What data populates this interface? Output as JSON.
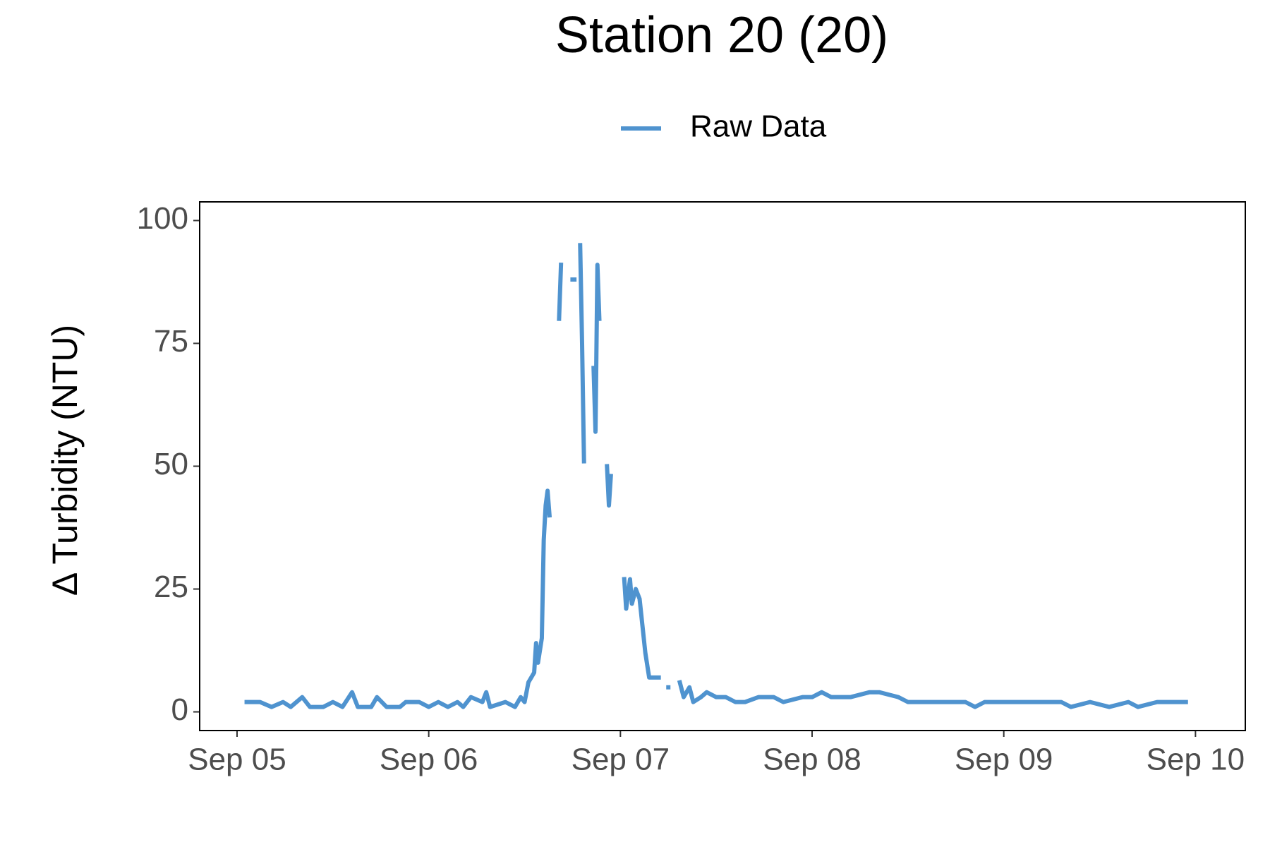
{
  "chart_data": {
    "type": "line",
    "title": "Station 20 (20)",
    "y_label": "Δ Turbidity (NTU)",
    "x": [
      5.05,
      5.12,
      5.18,
      5.24,
      5.28,
      5.34,
      5.38,
      5.45,
      5.5,
      5.55,
      5.6,
      5.63,
      5.7,
      5.73,
      5.78,
      5.85,
      5.88,
      5.95,
      6,
      6.05,
      6.1,
      6.15,
      6.18,
      6.22,
      6.28,
      6.3,
      6.32,
      6.4,
      6.45,
      6.48,
      6.5,
      6.52,
      6.55,
      6.56,
      6.57,
      6.59,
      6.6,
      6.61,
      6.62,
      6.63,
      6.65,
      6.68,
      6.69,
      6.7,
      6.75,
      6.76,
      6.77,
      6.79,
      6.8,
      6.81,
      6.83,
      6.86,
      6.87,
      6.88,
      6.89,
      6.91,
      6.93,
      6.94,
      6.95,
      6.98,
      7.02,
      7.03,
      7.05,
      7.06,
      7.08,
      7.1,
      7.13,
      7.15,
      7.2,
      7.22,
      7.25,
      7.28,
      7.31,
      7.33,
      7.36,
      7.38,
      7.42,
      7.45,
      7.5,
      7.55,
      7.6,
      7.65,
      7.72,
      7.8,
      7.85,
      7.95,
      8,
      8.05,
      8.1,
      8.15,
      8.2,
      8.3,
      8.35,
      8.45,
      8.5,
      8.6,
      8.7,
      8.8,
      8.85,
      8.9,
      9,
      9.1,
      9.2,
      9.3,
      9.35,
      9.45,
      9.55,
      9.65,
      9.7,
      9.8,
      9.9,
      9.95
    ],
    "series": [
      {
        "name": "Raw Data",
        "color": "#4f93cf",
        "values": [
          2,
          2,
          1,
          2,
          1,
          3,
          1,
          1,
          2,
          1,
          4,
          1,
          1,
          3,
          1,
          1,
          2,
          2,
          1,
          2,
          1,
          2,
          1,
          3,
          2,
          4,
          1,
          2,
          1,
          3,
          2,
          6,
          8,
          14,
          10,
          15,
          35,
          42,
          45,
          40,
          null,
          80,
          91,
          null,
          88,
          88,
          null,
          95,
          75,
          51,
          null,
          70,
          57,
          91,
          80,
          null,
          50,
          42,
          48,
          null,
          27,
          21,
          27,
          22,
          25,
          23,
          12,
          7,
          7,
          null,
          5,
          null,
          6,
          3,
          5,
          2,
          3,
          4,
          3,
          3,
          2,
          2,
          3,
          3,
          2,
          3,
          3,
          4,
          3,
          3,
          3,
          4,
          4,
          3,
          2,
          2,
          2,
          2,
          1,
          2,
          2,
          2,
          2,
          2,
          1,
          2,
          1,
          2,
          1,
          2,
          2,
          2
        ]
      }
    ],
    "xlim": [
      4.805,
      10.26
    ],
    "ylim": [
      -3.8,
      103.8
    ],
    "xticks": [
      {
        "value": 5,
        "label": "Sep 05"
      },
      {
        "value": 6,
        "label": "Sep 06"
      },
      {
        "value": 7,
        "label": "Sep 07"
      },
      {
        "value": 8,
        "label": "Sep 08"
      },
      {
        "value": 9,
        "label": "Sep 09"
      },
      {
        "value": 10,
        "label": "Sep 10"
      }
    ],
    "yticks": [
      0,
      25,
      50,
      75,
      100
    ],
    "legend": "top",
    "grid": false
  }
}
